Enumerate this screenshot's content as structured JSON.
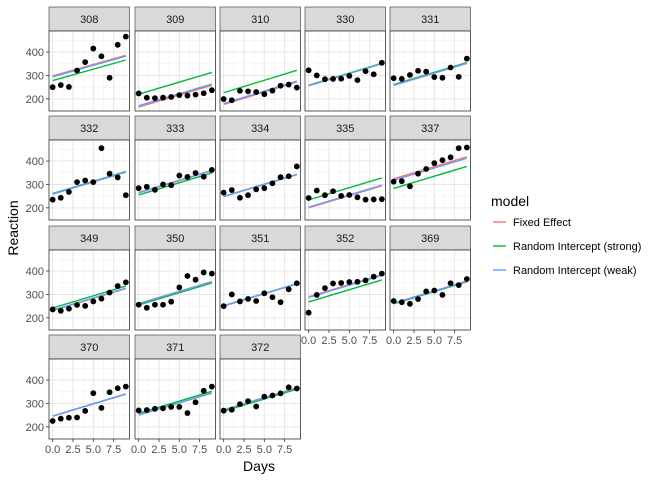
{
  "chart_data": {
    "type": "scatter",
    "facet_var": "Subject",
    "xlabel": "Days",
    "ylabel": "Reaction",
    "xlim": [
      -0.45,
      9.45
    ],
    "ylim": [
      148,
      490
    ],
    "x_ticks": [
      0,
      2.5,
      5,
      7.5
    ],
    "x_tick_labels": [
      "0.0",
      "2.5",
      "5.0",
      "7.5"
    ],
    "y_ticks": [
      200,
      300,
      400
    ],
    "y_tick_labels": [
      "200",
      "300",
      "400"
    ],
    "grid": true,
    "legend": {
      "position": "right",
      "title": "model",
      "entries": [
        {
          "label": "Fixed Effect",
          "color": "#F8766D"
        },
        {
          "label": "Random Intercept (strong)",
          "color": "#00BA38"
        },
        {
          "label": "Random Intercept (weak)",
          "color": "#619CFF"
        }
      ]
    },
    "x": [
      0,
      1,
      2,
      3,
      4,
      5,
      6,
      7,
      8,
      9
    ],
    "panels": [
      {
        "subject": "308",
        "reaction": [
          250,
          259,
          251,
          321,
          357,
          415,
          382,
          290,
          431,
          466
        ],
        "fits": {
          "fixed": [
            298,
            386
          ],
          "strong": [
            278,
            366
          ],
          "weak": [
            294,
            382
          ]
        }
      },
      {
        "subject": "309",
        "reaction": [
          223,
          205,
          203,
          205,
          208,
          216,
          214,
          218,
          224,
          237
        ],
        "fits": {
          "fixed": [
            165,
            258
          ],
          "strong": [
            220,
            313
          ],
          "weak": [
            170,
            263
          ]
        }
      },
      {
        "subject": "310",
        "reaction": [
          199,
          194,
          234,
          232,
          229,
          220,
          235,
          256,
          261,
          248
        ],
        "fits": {
          "fixed": [
            176,
            272
          ],
          "strong": [
            226,
            322
          ],
          "weak": [
            180,
            276
          ]
        }
      },
      {
        "subject": "330",
        "reaction": [
          322,
          300,
          284,
          285,
          286,
          298,
          280,
          318,
          305,
          354
        ],
        "fits": {
          "fixed": [
            256,
            350
          ],
          "strong": [
            258,
            352
          ],
          "weak": [
            256,
            350
          ]
        }
      },
      {
        "subject": "331",
        "reaction": [
          288,
          285,
          302,
          320,
          316,
          293,
          290,
          334,
          294,
          372
        ],
        "fits": {
          "fixed": [
            258,
            352
          ],
          "strong": [
            261,
            355
          ],
          "weak": [
            258,
            352
          ]
        }
      },
      {
        "subject": "332",
        "reaction": [
          235,
          243,
          268,
          310,
          317,
          310,
          455,
          346,
          330,
          254
        ],
        "fits": {
          "fixed": [
            259,
            353
          ],
          "strong": [
            261,
            355
          ],
          "weak": [
            259,
            353
          ]
        }
      },
      {
        "subject": "333",
        "reaction": [
          284,
          290,
          277,
          300,
          297,
          338,
          332,
          349,
          333,
          362
        ],
        "fits": {
          "fixed": [
            266,
            360
          ],
          "strong": [
            255,
            349
          ],
          "weak": [
            264,
            358
          ]
        }
      },
      {
        "subject": "334",
        "reaction": [
          265,
          276,
          243,
          254,
          279,
          284,
          305,
          331,
          335,
          377
        ],
        "fits": {
          "fixed": [
            249,
            343
          ],
          "strong": [
            248,
            342
          ],
          "weak": [
            249,
            343
          ]
        }
      },
      {
        "subject": "335",
        "reaction": [
          242,
          274,
          254,
          271,
          251,
          255,
          245,
          235,
          236,
          237
        ],
        "fits": {
          "fixed": [
            200,
            294
          ],
          "strong": [
            234,
            328
          ],
          "weak": [
            203,
            297
          ]
        }
      },
      {
        "subject": "337",
        "reaction": [
          312,
          314,
          292,
          346,
          366,
          391,
          404,
          416,
          455,
          458
        ],
        "fits": {
          "fixed": [
            324,
            418
          ],
          "strong": [
            283,
            377
          ],
          "weak": [
            318,
            412
          ]
        }
      },
      {
        "subject": "349",
        "reaction": [
          236,
          230,
          239,
          255,
          251,
          270,
          282,
          308,
          336,
          352
        ],
        "fits": {
          "fixed": [
            231,
            325
          ],
          "strong": [
            242,
            336
          ],
          "weak": [
            233,
            327
          ]
        }
      },
      {
        "subject": "350",
        "reaction": [
          256,
          243,
          256,
          256,
          269,
          330,
          379,
          363,
          394,
          389
        ],
        "fits": {
          "fixed": [
            261,
            355
          ],
          "strong": [
            255,
            349
          ],
          "weak": [
            260,
            354
          ]
        }
      },
      {
        "subject": "351",
        "reaction": [
          250,
          300,
          270,
          281,
          272,
          305,
          288,
          267,
          322,
          348
        ],
        "fits": {
          "fixed": [
            251,
            345
          ],
          "strong": [
            252,
            346
          ],
          "weak": [
            251,
            345
          ]
        }
      },
      {
        "subject": "352",
        "reaction": [
          222,
          298,
          327,
          347,
          349,
          353,
          354,
          360,
          376,
          389
        ],
        "fits": {
          "fixed": [
            290,
            384
          ],
          "strong": [
            268,
            362
          ],
          "weak": [
            287,
            381
          ]
        }
      },
      {
        "subject": "369",
        "reaction": [
          272,
          267,
          260,
          280,
          313,
          317,
          298,
          348,
          340,
          366
        ],
        "fits": {
          "fixed": [
            263,
            357
          ],
          "strong": [
            260,
            354
          ],
          "weak": [
            262,
            356
          ]
        }
      },
      {
        "subject": "370",
        "reaction": [
          225,
          235,
          239,
          240,
          268,
          344,
          281,
          348,
          365,
          372
        ],
        "fits": {
          "fixed": [
            246,
            340
          ],
          "strong": [
            246,
            340
          ],
          "weak": [
            246,
            340
          ]
        }
      },
      {
        "subject": "371",
        "reaction": [
          270,
          272,
          277,
          279,
          285,
          285,
          259,
          305,
          354,
          372
        ],
        "fits": {
          "fixed": [
            250,
            344
          ],
          "strong": [
            258,
            352
          ],
          "weak": [
            251,
            345
          ]
        }
      },
      {
        "subject": "372",
        "reaction": [
          269,
          273,
          297,
          310,
          287,
          329,
          334,
          343,
          369,
          364
        ],
        "fits": {
          "fixed": [
            273,
            367
          ],
          "strong": [
            267,
            361
          ],
          "weak": [
            272,
            366
          ]
        }
      }
    ]
  }
}
